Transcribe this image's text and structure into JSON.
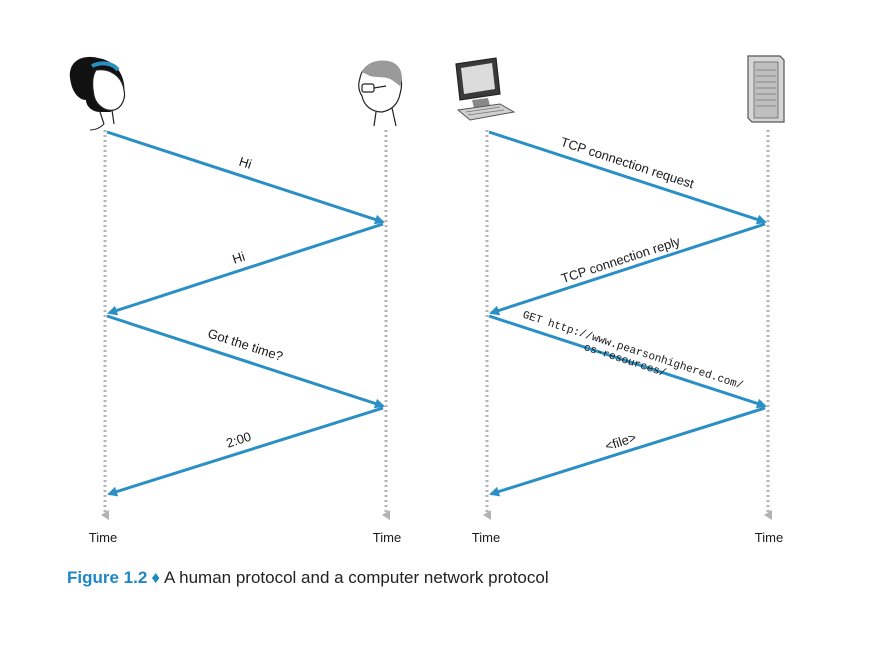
{
  "left_diagram": {
    "messages": [
      {
        "label": "Hi",
        "direction": "right"
      },
      {
        "label": "Hi",
        "direction": "left"
      },
      {
        "label": "Got the time?",
        "direction": "right"
      },
      {
        "label": "2:00",
        "direction": "left"
      }
    ],
    "time_labels": [
      "Time",
      "Time"
    ],
    "icons": [
      "woman-icon",
      "man-with-glasses-icon"
    ]
  },
  "right_diagram": {
    "messages": [
      {
        "label": "TCP connection request",
        "direction": "right"
      },
      {
        "label": "TCP connection reply",
        "direction": "left"
      },
      {
        "label": "GET http://www.pearsonhighered.com/",
        "label2": "cs-resources/",
        "direction": "right"
      },
      {
        "label": "<file>",
        "direction": "left"
      }
    ],
    "time_labels": [
      "Time",
      "Time"
    ],
    "icons": [
      "computer-icon",
      "server-icon"
    ]
  },
  "caption": {
    "figure": "Figure 1.2",
    "separator": "♦",
    "text": "A human protocol and a computer network protocol"
  },
  "colors": {
    "arrow": "#2a8fc4",
    "timeline": "#b3b3b3",
    "caption_accent": "#1f86c8"
  }
}
